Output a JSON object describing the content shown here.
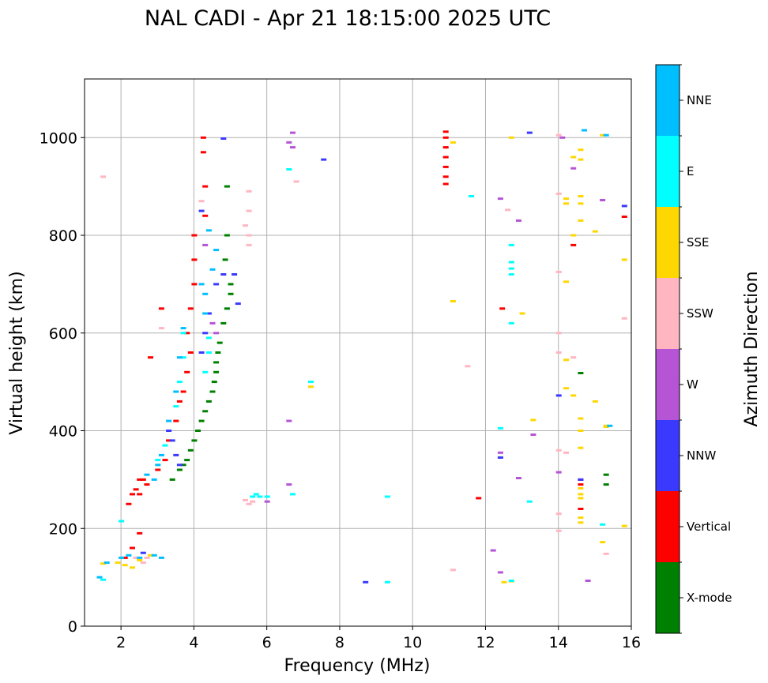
{
  "chart_data": {
    "type": "scatter",
    "title": "NAL CADI - Apr 21 18:15:00 2025 UTC",
    "xlabel": "Frequency (MHz)",
    "ylabel": "Virtual height (km)",
    "xlim": [
      1,
      16
    ],
    "ylim": [
      0,
      1120
    ],
    "xticks": [
      2,
      4,
      6,
      8,
      10,
      12,
      14,
      16
    ],
    "yticks": [
      0,
      200,
      400,
      600,
      800,
      1000
    ],
    "grid": true,
    "colorbar": {
      "label": "Azimuth Direction",
      "categories": [
        {
          "name": "X-mode",
          "color": "#008000"
        },
        {
          "name": "Vertical",
          "color": "#ff0000"
        },
        {
          "name": "NNW",
          "color": "#3a3aff"
        },
        {
          "name": "W",
          "color": "#b555d6"
        },
        {
          "name": "SSW",
          "color": "#ffb6c1"
        },
        {
          "name": "SSE",
          "color": "#ffd700"
        },
        {
          "name": "E",
          "color": "#00ffff"
        },
        {
          "name": "NNE",
          "color": "#00bfff"
        }
      ]
    },
    "series": [
      {
        "name": "X-mode",
        "points": [
          [
            3.4,
            300
          ],
          [
            3.6,
            320
          ],
          [
            3.7,
            330
          ],
          [
            3.8,
            340
          ],
          [
            3.9,
            360
          ],
          [
            4.0,
            380
          ],
          [
            4.1,
            400
          ],
          [
            4.2,
            420
          ],
          [
            4.3,
            440
          ],
          [
            4.4,
            460
          ],
          [
            4.5,
            480
          ],
          [
            4.55,
            500
          ],
          [
            4.6,
            520
          ],
          [
            4.6,
            540
          ],
          [
            4.65,
            560
          ],
          [
            4.7,
            580
          ],
          [
            4.8,
            620
          ],
          [
            4.9,
            650
          ],
          [
            5.0,
            680
          ],
          [
            5.0,
            700
          ],
          [
            4.85,
            750
          ],
          [
            4.9,
            800
          ],
          [
            4.9,
            900
          ],
          [
            15.3,
            310
          ],
          [
            15.3,
            290
          ],
          [
            14.6,
            518
          ]
        ]
      },
      {
        "name": "Vertical",
        "points": [
          [
            2.2,
            250
          ],
          [
            2.4,
            280
          ],
          [
            2.5,
            300
          ],
          [
            2.6,
            300
          ],
          [
            2.7,
            290
          ],
          [
            2.5,
            270
          ],
          [
            2.3,
            270
          ],
          [
            3.0,
            320
          ],
          [
            3.2,
            340
          ],
          [
            3.3,
            380
          ],
          [
            3.5,
            420
          ],
          [
            3.6,
            460
          ],
          [
            3.7,
            480
          ],
          [
            3.8,
            520
          ],
          [
            3.9,
            560
          ],
          [
            3.8,
            600
          ],
          [
            3.9,
            650
          ],
          [
            4.0,
            700
          ],
          [
            4.0,
            750
          ],
          [
            4.0,
            800
          ],
          [
            4.3,
            840
          ],
          [
            4.3,
            900
          ],
          [
            4.25,
            1000
          ],
          [
            4.25,
            970
          ],
          [
            3.1,
            650
          ],
          [
            2.8,
            550
          ],
          [
            10.9,
            1000
          ],
          [
            10.9,
            980
          ],
          [
            10.9,
            960
          ],
          [
            10.9,
            940
          ],
          [
            10.9,
            920
          ],
          [
            10.9,
            905
          ],
          [
            10.9,
            1012
          ],
          [
            12.45,
            650
          ],
          [
            14.4,
            780
          ],
          [
            14.6,
            300
          ],
          [
            14.6,
            290
          ],
          [
            14.6,
            240
          ],
          [
            15.8,
            838
          ],
          [
            11.8,
            262
          ],
          [
            2.1,
            140
          ],
          [
            2.3,
            160
          ],
          [
            2.5,
            190
          ]
        ]
      },
      {
        "name": "NNW",
        "points": [
          [
            3.3,
            400
          ],
          [
            3.4,
            380
          ],
          [
            3.5,
            350
          ],
          [
            3.6,
            330
          ],
          [
            4.2,
            560
          ],
          [
            4.3,
            600
          ],
          [
            4.4,
            640
          ],
          [
            4.6,
            700
          ],
          [
            4.8,
            720
          ],
          [
            5.1,
            720
          ],
          [
            5.2,
            660
          ],
          [
            4.2,
            850
          ],
          [
            4.8,
            998
          ],
          [
            7.55,
            955
          ],
          [
            12.4,
            345
          ],
          [
            13.2,
            1010
          ],
          [
            14.6,
            300
          ],
          [
            15.8,
            860
          ],
          [
            8.7,
            90
          ],
          [
            14.0,
            472
          ],
          [
            2.6,
            150
          ]
        ]
      },
      {
        "name": "W",
        "points": [
          [
            4.3,
            780
          ],
          [
            4.5,
            620
          ],
          [
            4.6,
            600
          ],
          [
            6.7,
            1010
          ],
          [
            6.6,
            990
          ],
          [
            6.7,
            980
          ],
          [
            6.6,
            420
          ],
          [
            6.6,
            290
          ],
          [
            6.0,
            255
          ],
          [
            12.4,
            875
          ],
          [
            12.9,
            830
          ],
          [
            12.4,
            355
          ],
          [
            12.9,
            303
          ],
          [
            14.1,
            1000
          ],
          [
            14.4,
            937
          ],
          [
            13.3,
            392
          ],
          [
            12.4,
            110
          ],
          [
            12.2,
            155
          ],
          [
            14.0,
            315
          ],
          [
            15.2,
            872
          ],
          [
            14.8,
            93
          ]
        ]
      },
      {
        "name": "SSW",
        "points": [
          [
            1.5,
            920
          ],
          [
            4.2,
            870
          ],
          [
            5.5,
            890
          ],
          [
            5.5,
            850
          ],
          [
            5.5,
            800
          ],
          [
            5.5,
            780
          ],
          [
            6.8,
            910
          ],
          [
            5.4,
            820
          ],
          [
            5.5,
            250
          ],
          [
            5.4,
            258
          ],
          [
            5.6,
            255
          ],
          [
            14.0,
            885
          ],
          [
            14.0,
            725
          ],
          [
            14.0,
            600
          ],
          [
            14.0,
            560
          ],
          [
            14.0,
            360
          ],
          [
            14.0,
            230
          ],
          [
            14.0,
            195
          ],
          [
            14.2,
            355
          ],
          [
            14.4,
            550
          ],
          [
            15.8,
            630
          ],
          [
            15.3,
            148
          ],
          [
            12.6,
            852
          ],
          [
            11.1,
            115
          ],
          [
            11.5,
            532
          ],
          [
            2.6,
            130
          ],
          [
            2.4,
            140
          ],
          [
            2.7,
            140
          ],
          [
            3.1,
            610
          ],
          [
            14.0,
            1005
          ]
        ]
      },
      {
        "name": "SSE",
        "points": [
          [
            2.3,
            120
          ],
          [
            2.5,
            135
          ],
          [
            2.8,
            145
          ],
          [
            11.1,
            990
          ],
          [
            11.1,
            665
          ],
          [
            12.7,
            1000
          ],
          [
            13.3,
            422
          ],
          [
            13.0,
            640
          ],
          [
            14.2,
            865
          ],
          [
            14.2,
            875
          ],
          [
            14.2,
            705
          ],
          [
            14.4,
            960
          ],
          [
            14.6,
            975
          ],
          [
            14.6,
            955
          ],
          [
            14.6,
            880
          ],
          [
            14.6,
            865
          ],
          [
            14.6,
            830
          ],
          [
            14.4,
            800
          ],
          [
            14.2,
            545
          ],
          [
            14.2,
            487
          ],
          [
            14.4,
            472
          ],
          [
            14.6,
            425
          ],
          [
            14.6,
            400
          ],
          [
            14.6,
            365
          ],
          [
            14.6,
            282
          ],
          [
            14.6,
            270
          ],
          [
            14.6,
            262
          ],
          [
            14.6,
            222
          ],
          [
            14.6,
            212
          ],
          [
            15.0,
            808
          ],
          [
            15.0,
            460
          ],
          [
            15.3,
            410
          ],
          [
            15.3,
            408
          ],
          [
            15.2,
            1005
          ],
          [
            15.8,
            750
          ],
          [
            15.8,
            205
          ],
          [
            15.2,
            172
          ],
          [
            12.5,
            90
          ],
          [
            12.7,
            92
          ],
          [
            7.2,
            490
          ],
          [
            1.5,
            128
          ],
          [
            1.9,
            130
          ],
          [
            2.1,
            125
          ]
        ]
      },
      {
        "name": "E",
        "points": [
          [
            3.6,
            500
          ],
          [
            3.7,
            550
          ],
          [
            3.7,
            600
          ],
          [
            3.5,
            450
          ],
          [
            3.2,
            370
          ],
          [
            3.0,
            340
          ],
          [
            4.3,
            520
          ],
          [
            4.4,
            560
          ],
          [
            4.4,
            590
          ],
          [
            5.7,
            270
          ],
          [
            5.8,
            265
          ],
          [
            5.6,
            265
          ],
          [
            6.0,
            265
          ],
          [
            6.7,
            270
          ],
          [
            7.2,
            500
          ],
          [
            9.3,
            265
          ],
          [
            9.3,
            90
          ],
          [
            11.6,
            880
          ],
          [
            12.7,
            780
          ],
          [
            12.7,
            745
          ],
          [
            12.7,
            732
          ],
          [
            12.7,
            720
          ],
          [
            12.7,
            620
          ],
          [
            13.2,
            255
          ],
          [
            12.4,
            405
          ],
          [
            15.2,
            208
          ],
          [
            12.7,
            93
          ],
          [
            6.6,
            935
          ],
          [
            1.5,
            95
          ],
          [
            2.0,
            215
          ]
        ]
      },
      {
        "name": "NNE",
        "points": [
          [
            3.6,
            550
          ],
          [
            3.7,
            610
          ],
          [
            3.5,
            480
          ],
          [
            3.3,
            420
          ],
          [
            2.9,
            300
          ],
          [
            2.7,
            310
          ],
          [
            3.0,
            330
          ],
          [
            3.1,
            350
          ],
          [
            4.2,
            700
          ],
          [
            4.4,
            810
          ],
          [
            4.6,
            770
          ],
          [
            4.5,
            730
          ],
          [
            4.3,
            680
          ],
          [
            4.3,
            640
          ],
          [
            1.6,
            130
          ],
          [
            2.0,
            140
          ],
          [
            2.2,
            145
          ],
          [
            2.5,
            140
          ],
          [
            2.9,
            145
          ],
          [
            3.1,
            140
          ],
          [
            1.4,
            100
          ],
          [
            14.7,
            1015
          ],
          [
            15.4,
            410
          ],
          [
            15.3,
            1005
          ]
        ]
      }
    ]
  }
}
